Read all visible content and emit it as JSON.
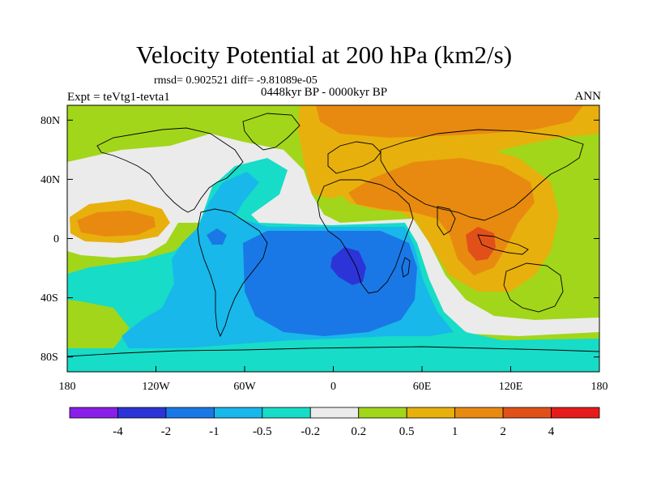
{
  "title": "Velocity Potential at 200 hPa (km2/s)",
  "stats": "rmsd= 0.902521 diff= -9.81089e-05",
  "experiment": "Expt = teVtg1-tevta1",
  "period": "0448kyr BP - 0000kyr BP",
  "season": "ANN",
  "lat_ticks": [
    "80N",
    "40N",
    "0",
    "40S",
    "80S"
  ],
  "lon_ticks": [
    "180",
    "120W",
    "60W",
    "0",
    "60E",
    "120E",
    "180"
  ],
  "colorbar": {
    "labels": [
      "-4",
      "-2",
      "-1",
      "-0.5",
      "-0.2",
      "0.2",
      "0.5",
      "1",
      "2",
      "4"
    ],
    "colors": [
      "#8a1ee8",
      "#2c34d8",
      "#1a78e6",
      "#18b8ea",
      "#17dcc8",
      "#ebebeb",
      "#a2d61a",
      "#e8b00c",
      "#e88a10",
      "#e2501a",
      "#e61c1c"
    ]
  }
}
